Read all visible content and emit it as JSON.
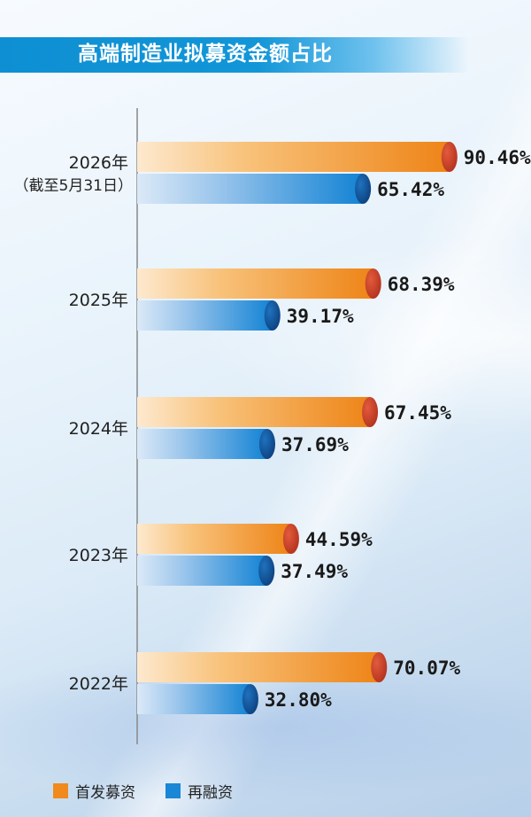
{
  "title": "高端制造业拟募资金额占比",
  "chart_data": {
    "type": "bar",
    "orientation": "horizontal",
    "title": "高端制造业拟募资金额占比",
    "unit": "%",
    "categories": [
      "2026年",
      "2025年",
      "2024年",
      "2023年",
      "2022年"
    ],
    "category_notes": [
      "（截至5月31日）",
      "",
      "",
      "",
      ""
    ],
    "series": [
      {
        "name": "首发募资",
        "values": [
          90.46,
          68.39,
          67.45,
          44.59,
          70.07
        ],
        "labels": [
          "90.46%",
          "68.39%",
          "67.45%",
          "44.59%",
          "70.07%"
        ],
        "color": "#f08a1c"
      },
      {
        "name": "再融资",
        "values": [
          65.42,
          39.17,
          37.69,
          37.49,
          32.8
        ],
        "labels": [
          "65.42%",
          "39.17%",
          "37.69%",
          "37.49%",
          "32.80%"
        ],
        "color": "#1a86d6"
      }
    ],
    "xlim": [
      0,
      100
    ],
    "grid": false,
    "legend": "bottom-left"
  }
}
